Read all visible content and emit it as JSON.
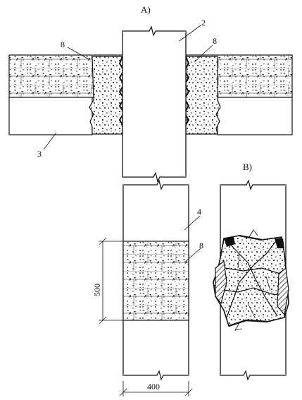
{
  "figure": {
    "panel_a": "A)",
    "panel_b": "B)",
    "callouts": {
      "n2": "2",
      "n8_left": "8",
      "n8_right": "8",
      "n3": "3",
      "n4": "4",
      "n8_lower": "8"
    },
    "dimensions": {
      "height": "500",
      "width": "400"
    }
  },
  "colors": {
    "ink": "#111111",
    "paper": "#ffffff"
  }
}
